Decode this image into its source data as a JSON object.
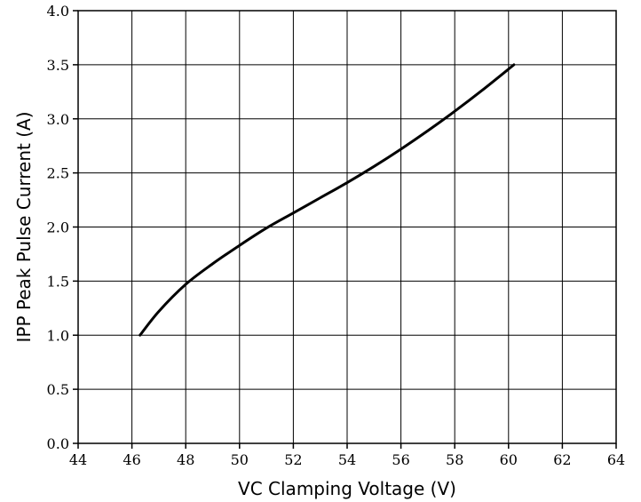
{
  "chart_data": {
    "type": "line",
    "title": "",
    "xlabel": "VC Clamping Voltage (V)",
    "ylabel": "IPP Peak Pulse Current (A)",
    "xlim": [
      44,
      64
    ],
    "ylim": [
      0,
      4
    ],
    "x_ticks": [
      "44",
      "46",
      "48",
      "50",
      "52",
      "54",
      "56",
      "58",
      "60",
      "62",
      "64"
    ],
    "y_ticks": [
      "0.0",
      "0.5",
      "1.0",
      "1.5",
      "2.0",
      "2.5",
      "3.0",
      "3.5",
      "4.0"
    ],
    "grid": true,
    "series": [
      {
        "x": [
          46.3,
          47.0,
          48.0,
          49.0,
          50.0,
          51.0,
          52.0,
          53.0,
          54.0,
          55.0,
          56.0,
          57.0,
          58.0,
          59.0,
          60.2
        ],
        "y": [
          1.0,
          1.22,
          1.47,
          1.66,
          1.83,
          1.99,
          2.13,
          2.27,
          2.41,
          2.56,
          2.72,
          2.89,
          3.07,
          3.26,
          3.5
        ]
      }
    ],
    "line_color": "#000000"
  }
}
